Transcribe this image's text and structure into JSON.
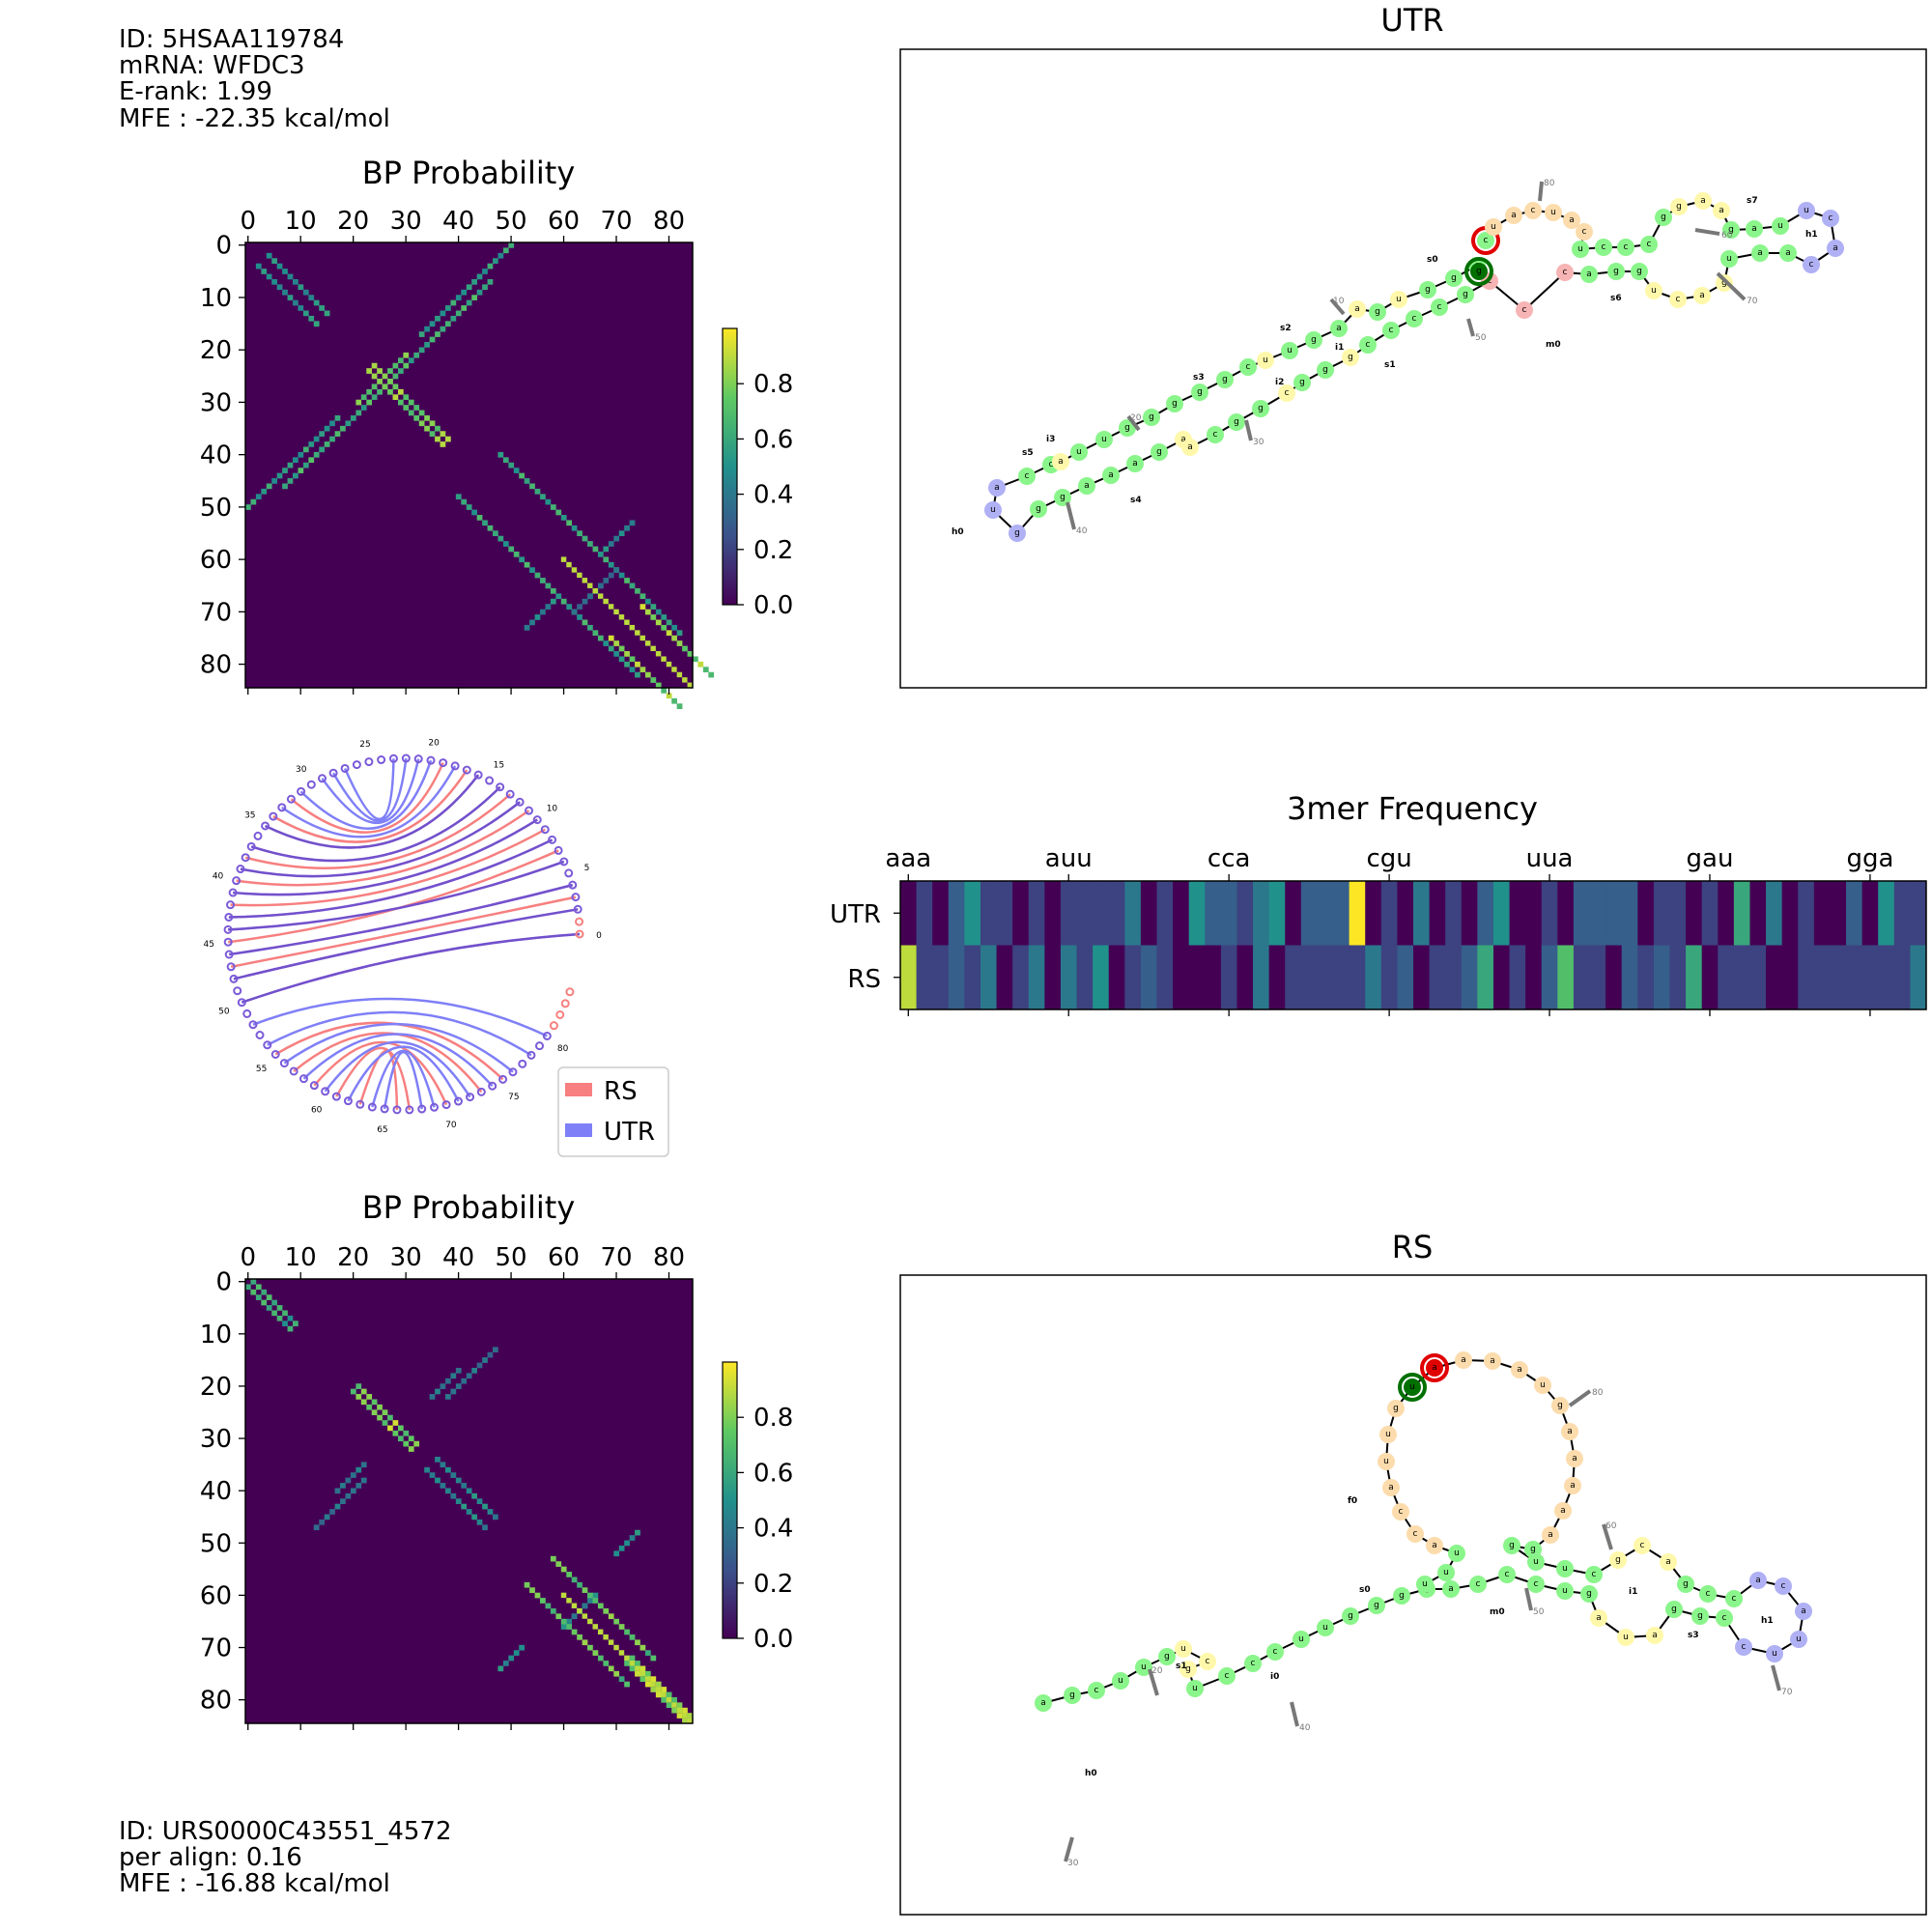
{
  "utr_info": {
    "id_line": "ID: 5HSAA119784",
    "mrna_line": "mRNA: WFDC3",
    "erank_line": "E-rank: 1.99",
    "mfe_line": "MFE : -22.35 kcal/mol"
  },
  "rs_info": {
    "id_line": "ID: URS0000C43551_4572",
    "align_line": "per align: 0.16",
    "mfe_line": "MFE : -16.88 kcal/mol"
  },
  "bp_top": {
    "title": "BP Probability",
    "ticks": [
      "0",
      "10",
      "20",
      "30",
      "40",
      "50",
      "60",
      "70",
      "80"
    ],
    "colorbar_ticks": [
      "0.0",
      "0.2",
      "0.4",
      "0.6",
      "0.8"
    ]
  },
  "bp_bottom": {
    "title": "BP Probability",
    "ticks": [
      "0",
      "10",
      "20",
      "30",
      "40",
      "50",
      "60",
      "70",
      "80"
    ],
    "colorbar_ticks": [
      "0.0",
      "0.2",
      "0.4",
      "0.6",
      "0.8"
    ]
  },
  "utr_structure": {
    "title": "UTR",
    "loop_labels": [
      "h0",
      "s5",
      "i3",
      "s4",
      "s3",
      "i2",
      "s2",
      "i1",
      "s1",
      "s0",
      "m0",
      "s6",
      "s7",
      "h1"
    ],
    "index_labels": [
      "10",
      "20",
      "30",
      "40",
      "50",
      "60",
      "70",
      "80"
    ]
  },
  "rs_structure": {
    "title": "RS",
    "loop_labels": [
      "h0",
      "s1",
      "i0",
      "s0",
      "f0",
      "m0",
      "i1",
      "s3",
      "h1"
    ],
    "index_labels": [
      "20",
      "30",
      "40",
      "50",
      "60",
      "70",
      "80"
    ]
  },
  "arc_diagram": {
    "labels": [
      "0",
      "5",
      "10",
      "15",
      "20",
      "25",
      "30",
      "35",
      "40",
      "45",
      "50",
      "55",
      "60",
      "65",
      "70",
      "75",
      "80"
    ],
    "legend": [
      {
        "name": "RS",
        "color": "#f77f7f"
      },
      {
        "name": "UTR",
        "color": "#7f7ff7"
      }
    ]
  },
  "kmer": {
    "title": "3mer Frequency",
    "ticks": [
      "aaa",
      "auu",
      "cca",
      "cgu",
      "uua",
      "gau",
      "gga"
    ],
    "rows": [
      "UTR",
      "RS"
    ]
  },
  "colors": {
    "stem": "#8af58a",
    "hairpin": "#b0b0f5",
    "interior": "#fff8aa",
    "multiloop": "#f7b4b4",
    "free": "#fcdcac",
    "start_ring": "#e00000",
    "end_ring": "#007000"
  }
}
